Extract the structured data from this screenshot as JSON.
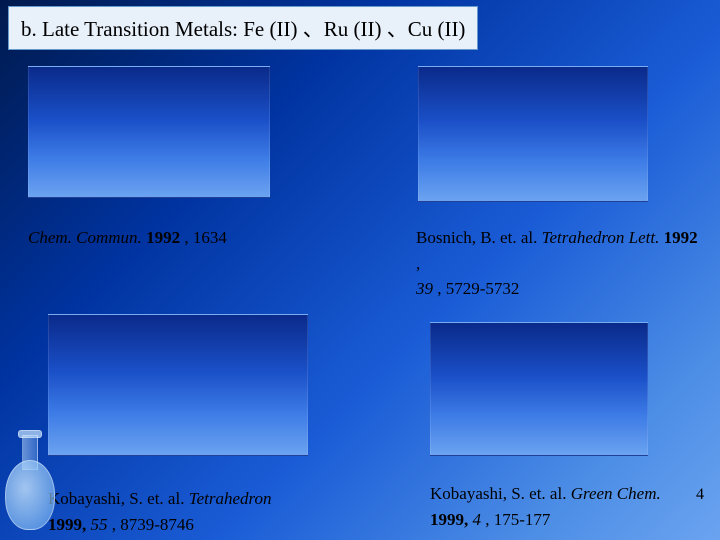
{
  "header": {
    "text": "b. Late Transition Metals: Fe (II) 、Ru (II) 、Cu (II)"
  },
  "citations": {
    "c1": {
      "journal": "Chem. Commun.",
      "year": "1992",
      "pages": ", 1634"
    },
    "c2": {
      "authors": "Bosnich, B. et. al. ",
      "journal": "Tetrahedron Lett.",
      "year": " 1992",
      "line2_vol": "39",
      "line2_pages": ", 5729-5732"
    },
    "c3": {
      "authors": "Kobayashi, S. et. al. ",
      "journal": "Tetrahedron",
      "year_vol": "1999, ",
      "vol": "55",
      "pages": ", 8739-8746"
    },
    "c4": {
      "authors": "Kobayashi, S. et. al. ",
      "journal": "Green Chem.",
      "year_vol": "1999, ",
      "vol": "4",
      "pages": ", 175-177"
    }
  },
  "page_number": "4",
  "styling": {
    "bg_gradient": [
      "#001a4d",
      "#0033a0",
      "#1a5cd6",
      "#4d8ee6",
      "#6ba3f0"
    ],
    "header_bg": "#e8f0fa",
    "header_border": "#6699cc",
    "box_gradient": [
      "#0a2a8a",
      "#1a4fc7",
      "#3d7be6",
      "#6ba3f0"
    ],
    "text_color": "#000000",
    "font_family": "Times New Roman",
    "header_fontsize": 21,
    "citation_fontsize": 17
  }
}
